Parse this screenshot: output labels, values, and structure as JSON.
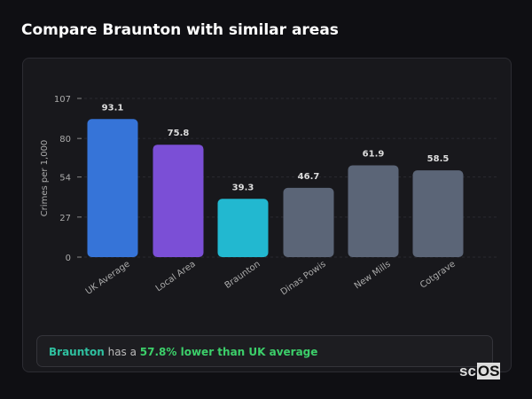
{
  "title": "Compare Braunton with similar areas",
  "chart_data": {
    "type": "bar",
    "categories": [
      "UK Average",
      "Local Area",
      "Braunton",
      "Dinas Powis",
      "New Mills",
      "Cotgrave"
    ],
    "values": [
      93.1,
      75.8,
      39.3,
      46.7,
      61.9,
      58.5
    ],
    "colors": [
      "#3674d8",
      "#7b4fd6",
      "#22b8d0",
      "#5b6577",
      "#5b6577",
      "#5b6577"
    ],
    "ylabel": "Crimes per 1,000",
    "ylim": [
      0,
      107
    ],
    "yticks": [
      0,
      27,
      54,
      80,
      107
    ],
    "grid": true
  },
  "summary": {
    "area": "Braunton",
    "middle": " has a ",
    "highlight": "57.8% lower than UK average"
  },
  "logo": {
    "prefix": "sc",
    "box": "OS"
  }
}
